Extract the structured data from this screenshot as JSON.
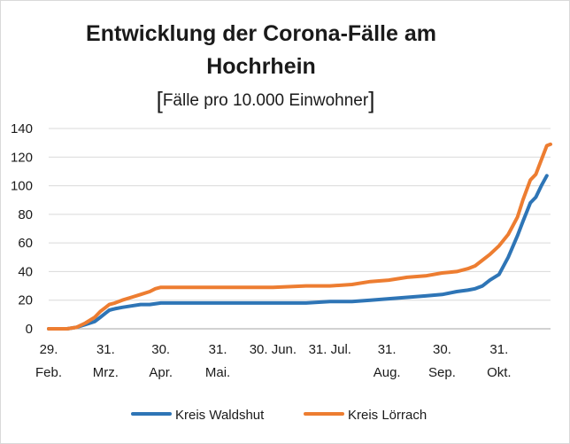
{
  "chart_data": {
    "type": "line",
    "title_line1": "Entwicklung der Corona-Fälle am",
    "title_line2": "Hochrhein",
    "subtitle": "Fälle pro 10.000  Einwohner",
    "ylim": [
      0,
      140
    ],
    "yticks": [
      0,
      20,
      40,
      60,
      80,
      100,
      120,
      140
    ],
    "xlim": [
      0,
      273
    ],
    "x_tick_labels": [
      {
        "x": 0,
        "lines": [
          "29.",
          "Feb."
        ]
      },
      {
        "x": 31,
        "lines": [
          "31.",
          "Mrz."
        ]
      },
      {
        "x": 61,
        "lines": [
          "30.",
          "Apr."
        ]
      },
      {
        "x": 92,
        "lines": [
          "31.",
          "Mai."
        ]
      },
      {
        "x": 122,
        "lines": [
          "30. Jun."
        ]
      },
      {
        "x": 153,
        "lines": [
          "31. Jul."
        ]
      },
      {
        "x": 184,
        "lines": [
          "31.",
          "Aug."
        ]
      },
      {
        "x": 214,
        "lines": [
          "30.",
          "Sep."
        ]
      },
      {
        "x": 245,
        "lines": [
          "31.",
          "Okt."
        ]
      }
    ],
    "series": [
      {
        "name": "Kreis Waldshut",
        "color": "#2e75b6",
        "x": [
          0,
          10,
          15,
          20,
          25,
          28,
          31,
          33,
          36,
          40,
          45,
          50,
          55,
          61,
          70,
          80,
          92,
          110,
          122,
          140,
          153,
          165,
          175,
          185,
          195,
          205,
          214,
          222,
          228,
          232,
          236,
          240,
          245,
          250,
          255,
          258,
          262,
          265,
          268,
          271
        ],
        "values": [
          0,
          0,
          1,
          3,
          5,
          8,
          11,
          13,
          14,
          15,
          16,
          17,
          17,
          18,
          18,
          18,
          18,
          18,
          18,
          18,
          19,
          19,
          20,
          21,
          22,
          23,
          24,
          26,
          27,
          28,
          30,
          34,
          38,
          50,
          65,
          75,
          88,
          92,
          100,
          107
        ]
      },
      {
        "name": "Kreis Lörrach",
        "color": "#ed7d31",
        "x": [
          0,
          10,
          15,
          20,
          25,
          28,
          31,
          33,
          36,
          40,
          45,
          50,
          55,
          58,
          61,
          70,
          80,
          92,
          110,
          122,
          140,
          153,
          165,
          175,
          185,
          195,
          205,
          214,
          222,
          228,
          232,
          236,
          240,
          245,
          250,
          255,
          258,
          262,
          265,
          268,
          271,
          273
        ],
        "values": [
          0,
          0,
          1,
          4,
          8,
          12,
          15,
          17,
          18,
          20,
          22,
          24,
          26,
          28,
          29,
          29,
          29,
          29,
          29,
          29,
          30,
          30,
          31,
          33,
          34,
          36,
          37,
          39,
          40,
          42,
          44,
          48,
          52,
          58,
          66,
          78,
          90,
          104,
          108,
          118,
          128,
          129
        ]
      }
    ]
  }
}
